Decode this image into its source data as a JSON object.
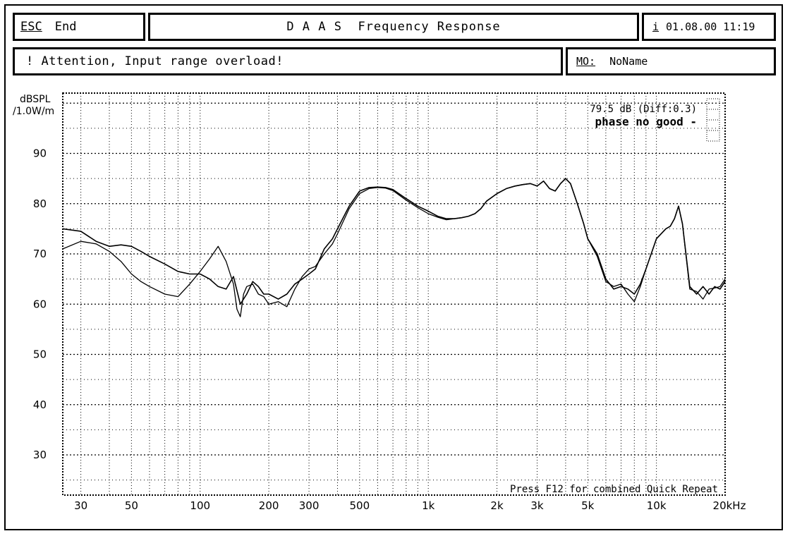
{
  "header": {
    "esc_label": "ESC",
    "end_label": "End",
    "title": "D A A S  Frequency Response",
    "info_icon_label": "i",
    "datetime": "01.08.00 11:19"
  },
  "status": {
    "attention_text": "! Attention, Input range overload!",
    "mo_label": "MO:",
    "mo_value": "NoName"
  },
  "chart_data": {
    "type": "line",
    "xscale": "log",
    "xlim": [
      25,
      20000
    ],
    "ylim": [
      22,
      102
    ],
    "grid": true,
    "ylabel_line1": "dBSPL",
    "ylabel_line2": "/1.0W/m",
    "x_tick_labels": [
      "30",
      "50",
      "100",
      "200",
      "300",
      "500",
      "1k",
      "2k",
      "3k",
      "5k",
      "10k",
      "20kHz"
    ],
    "x_tick_values": [
      30,
      50,
      100,
      200,
      300,
      500,
      1000,
      2000,
      3000,
      5000,
      10000,
      20000
    ],
    "y_tick_values": [
      30,
      40,
      50,
      60,
      70,
      80,
      90
    ],
    "annotation_level": "79.5 dB (Diff:0.3)",
    "annotation_status": "phase no good -",
    "footer_hint": "Press F12 for combined Quick Repeat",
    "line_color": "#000000",
    "series": [
      {
        "x": [
          25,
          30,
          35,
          40,
          45,
          50,
          55,
          60,
          70,
          80,
          90,
          100,
          110,
          120,
          130,
          140,
          150,
          160,
          170,
          180,
          190,
          200,
          220,
          240,
          260,
          280,
          300,
          320,
          350,
          380,
          400,
          450,
          500,
          550,
          600,
          650,
          700,
          800,
          900,
          1000,
          1100,
          1200,
          1300,
          1400,
          1500,
          1600,
          1700,
          1800,
          2000,
          2200,
          2400,
          2600,
          2800,
          3000,
          3200,
          3400,
          3600,
          3800,
          4000,
          4200,
          4500,
          4800,
          5000,
          5500,
          6000,
          6500,
          7000,
          7500,
          8000,
          8500,
          9000,
          10000,
          11000,
          11500,
          12000,
          12500,
          13000,
          14000,
          15000,
          16000,
          17000,
          18000,
          19000,
          20000
        ],
        "y": [
          75,
          74.5,
          72.5,
          71.5,
          71.8,
          71.5,
          70.5,
          69.5,
          68,
          66.5,
          66,
          66,
          65,
          63.5,
          63,
          65.5,
          60,
          62,
          64.5,
          63.5,
          62,
          62,
          61,
          62,
          64,
          65,
          66,
          67,
          71,
          73,
          75,
          79.5,
          82.5,
          83.2,
          83.3,
          83.2,
          82.8,
          81,
          79.5,
          78.5,
          77.5,
          77,
          77,
          77.2,
          77.5,
          78,
          79,
          80.5,
          82,
          83,
          83.5,
          83.8,
          84,
          83.5,
          84.5,
          83,
          82.5,
          84,
          85,
          84,
          80,
          76,
          73,
          70,
          65,
          63,
          63.5,
          63,
          62,
          64,
          67,
          73,
          75,
          75.5,
          77,
          79.5,
          76,
          63.5,
          62,
          63.5,
          62,
          63.5,
          63,
          64.5
        ]
      },
      {
        "x": [
          25,
          30,
          35,
          40,
          45,
          50,
          55,
          60,
          70,
          80,
          90,
          100,
          110,
          120,
          130,
          140,
          145,
          150,
          155,
          160,
          170,
          180,
          190,
          200,
          220,
          240,
          260,
          280,
          300,
          320,
          350,
          380,
          400,
          450,
          500,
          550,
          600,
          650,
          700,
          800,
          900,
          1000,
          1100,
          1200,
          1300,
          1400,
          1500,
          1600,
          1700,
          1800,
          2000,
          2200,
          2400,
          2600,
          2800,
          3000,
          3200,
          3400,
          3600,
          3800,
          4000,
          4200,
          4500,
          4800,
          5000,
          5500,
          6000,
          6500,
          7000,
          7500,
          8000,
          8500,
          9000,
          10000,
          11000,
          11500,
          12000,
          12500,
          13000,
          14000,
          15000,
          16000,
          17000,
          18000,
          19000,
          20000
        ],
        "y": [
          71,
          72.5,
          72,
          70.5,
          68.5,
          66,
          64.5,
          63.5,
          62,
          61.5,
          64,
          66.5,
          69,
          71.5,
          68.5,
          64,
          59,
          57.5,
          62,
          63.5,
          64,
          62,
          61.5,
          60,
          60.5,
          59.5,
          63,
          65.5,
          67,
          67.5,
          70,
          72,
          74,
          79,
          82,
          83,
          83.2,
          83.1,
          82.6,
          80.7,
          79.2,
          78,
          77.3,
          76.8,
          77,
          77.2,
          77.5,
          78,
          79,
          80.5,
          82,
          83,
          83.5,
          83.8,
          84,
          83.5,
          84.5,
          83,
          82.5,
          84,
          85,
          84,
          80,
          76,
          73,
          69.5,
          64.5,
          63.5,
          64,
          62,
          60.5,
          63.5,
          67,
          73,
          75,
          75.5,
          77,
          79.5,
          76,
          63,
          62.5,
          61,
          63,
          63.2,
          63.5,
          65
        ]
      }
    ]
  }
}
